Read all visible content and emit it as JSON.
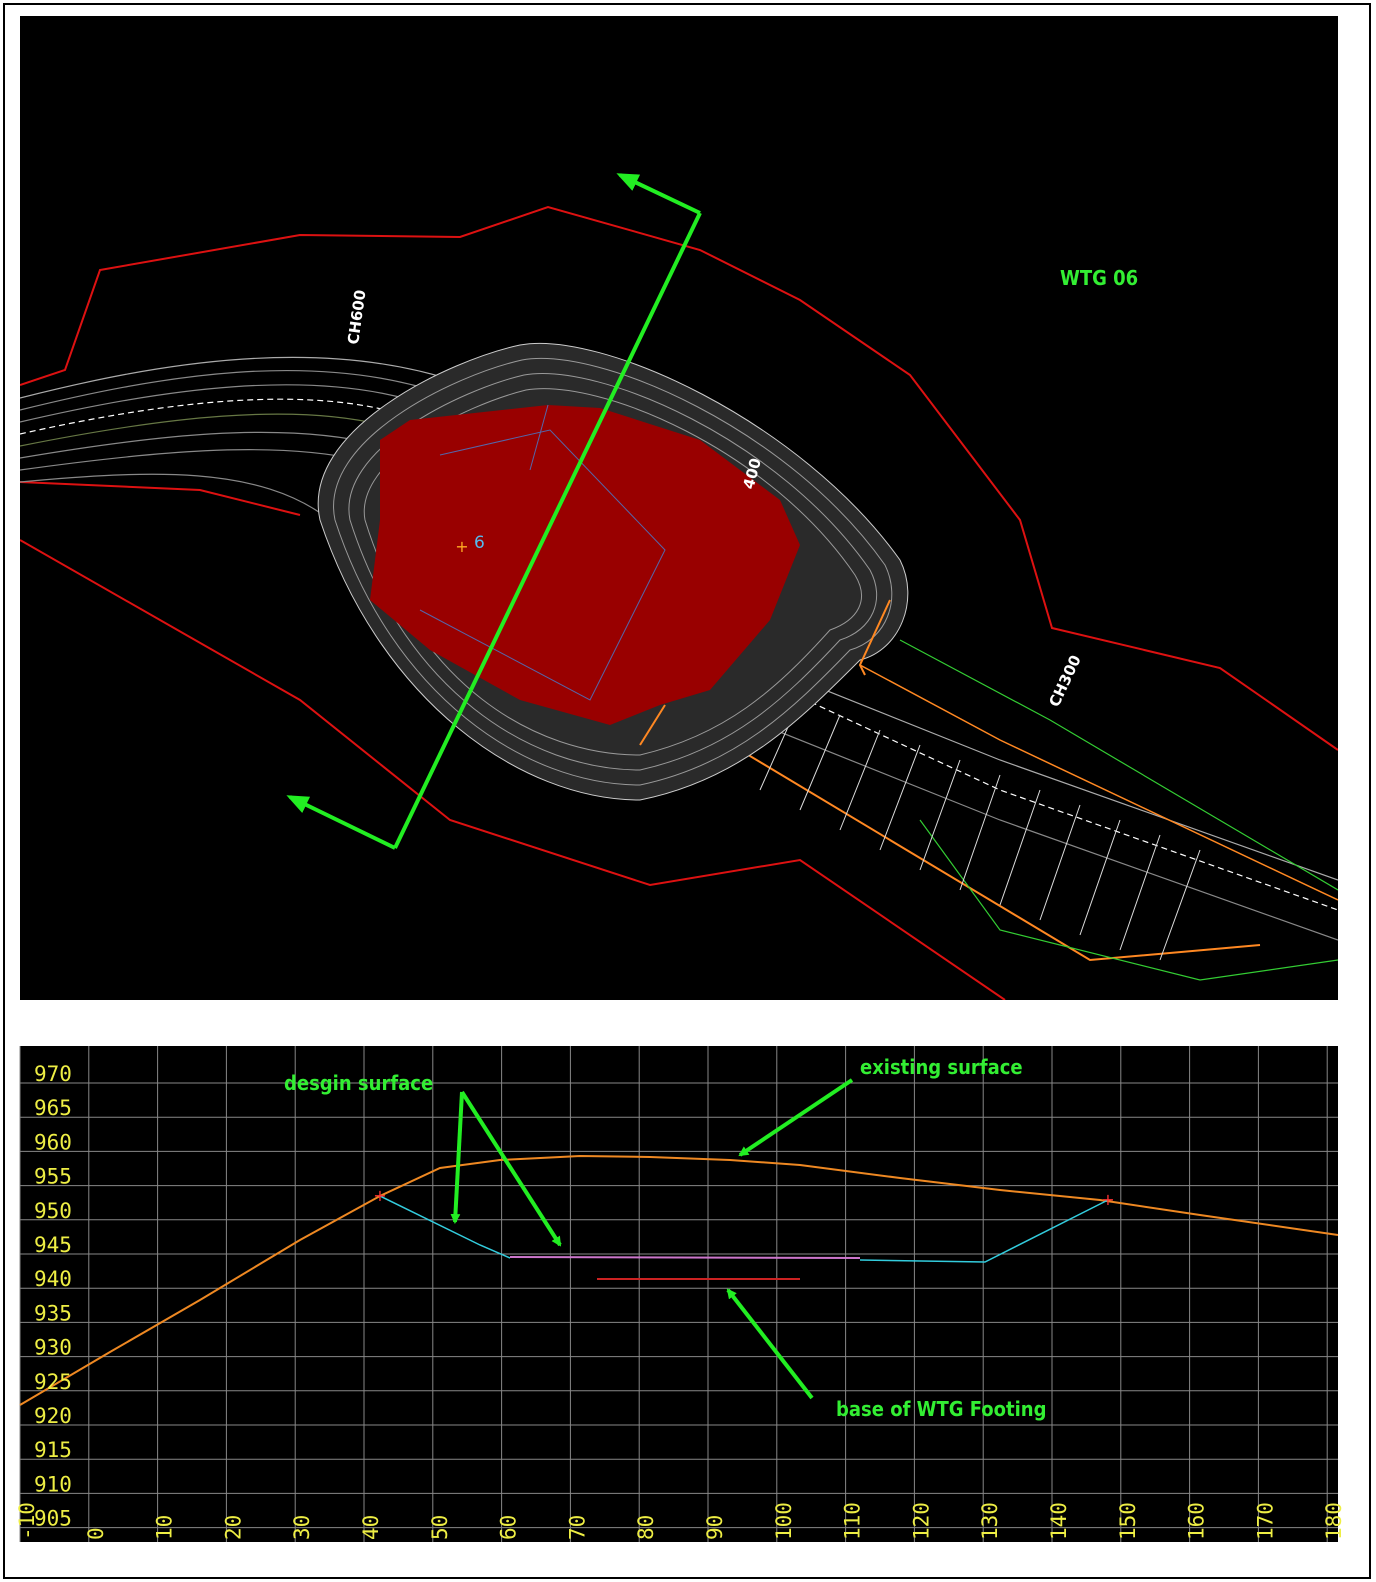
{
  "plan": {
    "labels": {
      "turbine": "WTG 06",
      "chainage_left": "CH600",
      "chainage_mid": "400",
      "chainage_right": "CH300",
      "point": "6"
    }
  },
  "section": {
    "y_labels": [
      970,
      965,
      960,
      955,
      950,
      945,
      940,
      935,
      930,
      925,
      920,
      915,
      910,
      905
    ],
    "x_labels": [
      -10,
      0,
      10,
      20,
      30,
      40,
      50,
      60,
      70,
      80,
      90,
      100,
      110,
      120,
      130,
      140,
      150,
      160,
      170,
      180
    ],
    "annotations": {
      "design": "desgin surface",
      "existing": "existing surface",
      "footing": "base of WTG Footing"
    }
  }
}
